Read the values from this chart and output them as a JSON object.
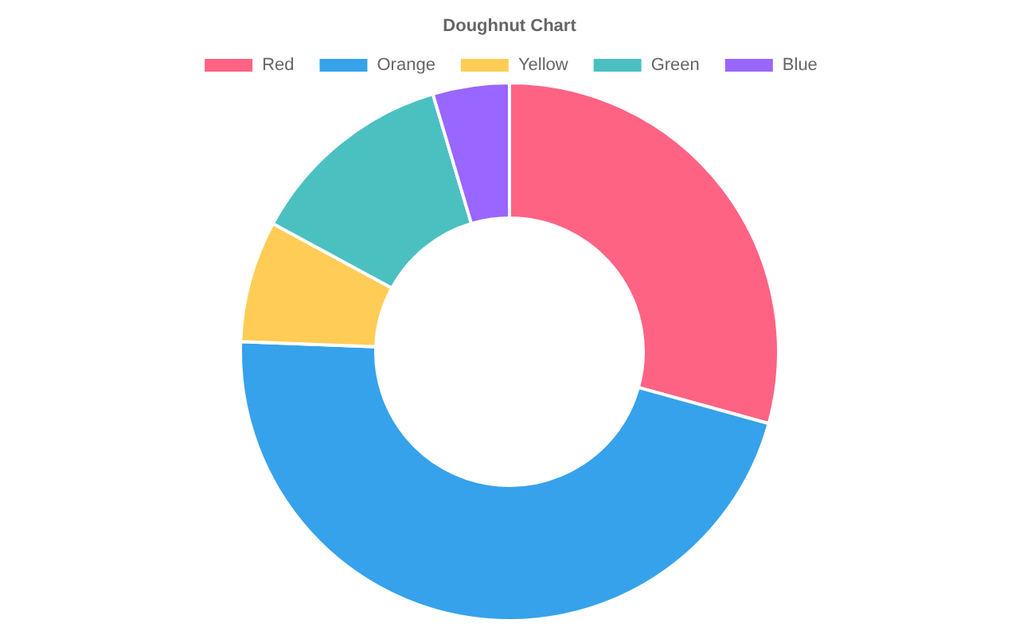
{
  "chart_data": {
    "type": "donut",
    "title": "Doughnut Chart",
    "categories": [
      "Red",
      "Orange",
      "Yellow",
      "Green",
      "Blue"
    ],
    "values": [
      29.3,
      46.3,
      7.3,
      12.5,
      4.6
    ],
    "colors": [
      "#ff6384",
      "#36a2eb",
      "#ffcd56",
      "#4bc0c0",
      "#9966ff"
    ],
    "legend": "top"
  }
}
